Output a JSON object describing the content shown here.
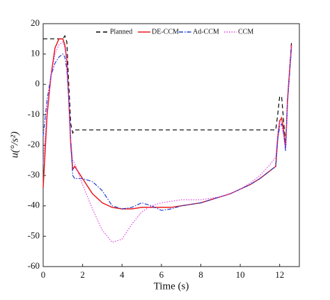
{
  "chart_data": {
    "type": "line",
    "xlabel": "Time (s)",
    "ylabel": "u(°/s²)",
    "x": [
      0,
      0.2,
      0.4,
      0.6,
      0.8,
      1.0,
      1.1,
      1.2,
      1.3,
      1.4,
      1.5,
      1.6,
      2,
      2.5,
      3,
      3.5,
      4,
      4.5,
      5,
      5.5,
      6,
      6.5,
      7,
      7.5,
      8,
      8.5,
      9,
      9.5,
      10,
      10.5,
      11,
      11.5,
      11.8,
      11.9,
      12,
      12.1,
      12.2,
      12.3,
      12.4,
      12.6
    ],
    "series": [
      {
        "name": "Planned",
        "color": "#000000",
        "dash": "6,4",
        "values": [
          15,
          15,
          15,
          15,
          15,
          15,
          16,
          14,
          0,
          -13,
          -16,
          -15,
          -15,
          -15,
          -15,
          -15,
          -15,
          -15,
          -15,
          -15,
          -15,
          -15,
          -15,
          -15,
          -15,
          -15,
          -15,
          -15,
          -15,
          -15,
          -15,
          -15,
          -15,
          -10,
          -4,
          -4,
          -12,
          -20,
          -5,
          14
        ]
      },
      {
        "name": "DE-CCM",
        "color": "#e8191c",
        "dash": "none",
        "values": [
          -34,
          -10,
          3,
          12,
          15,
          15,
          13,
          8,
          -5,
          -20,
          -28,
          -27,
          -31,
          -36,
          -39,
          -40.5,
          -41,
          -41,
          -40.5,
          -40.5,
          -40.5,
          -40.5,
          -40,
          -39.5,
          -39,
          -38,
          -37,
          -36,
          -34.5,
          -33,
          -31,
          -28.5,
          -27,
          -18,
          -12,
          -11,
          -15,
          -21,
          -5,
          13
        ]
      },
      {
        "name": "Ad-CCM",
        "color": "#1f3fd0",
        "dash": "6,2,1.5,2",
        "values": [
          -17,
          -5,
          3,
          7,
          9,
          10,
          9,
          5,
          -5,
          -18,
          -30,
          -31,
          -31,
          -32,
          -35,
          -40,
          -41,
          -40.5,
          -39,
          -40,
          -41.5,
          -41,
          -40,
          -39.5,
          -39,
          -38,
          -37,
          -36,
          -34.5,
          -33,
          -31,
          -28.5,
          -27,
          -18,
          -14,
          -13,
          -16,
          -22,
          -6,
          12
        ]
      },
      {
        "name": "CCM",
        "color": "#e040e0",
        "dash": "1.5,2",
        "values": [
          -26,
          -8,
          3,
          10,
          13,
          14,
          12,
          8,
          -5,
          -18,
          -25,
          -26,
          -33,
          -41,
          -48,
          -52,
          -51,
          -46,
          -42,
          -40,
          -39,
          -38.5,
          -38,
          -38,
          -38,
          -37.5,
          -37,
          -36,
          -34.5,
          -32.5,
          -30,
          -26.5,
          -24,
          -16,
          -12,
          -13,
          -17,
          -21,
          -6,
          13
        ]
      }
    ],
    "xlim": [
      0,
      13
    ],
    "ylim": [
      -60,
      20
    ],
    "xticks": [
      0,
      2,
      4,
      6,
      8,
      10,
      12
    ],
    "yticks": [
      -60,
      -50,
      -40,
      -30,
      -20,
      -10,
      0,
      10,
      20
    ],
    "legend": "top"
  }
}
